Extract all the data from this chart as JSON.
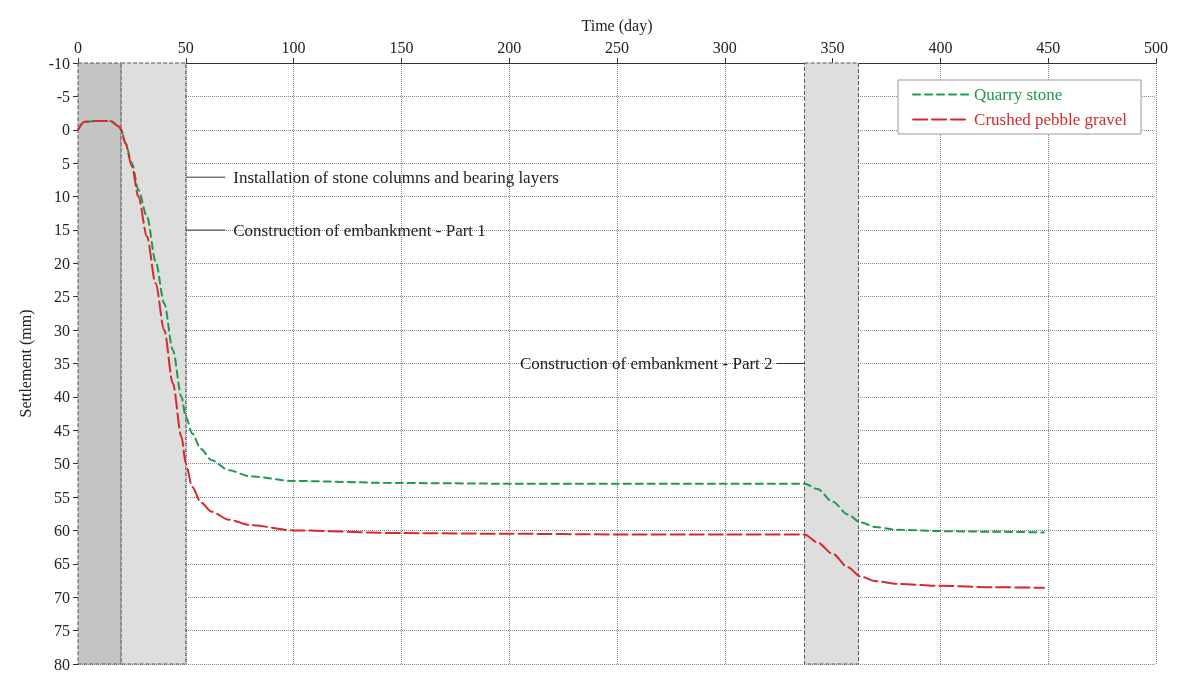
{
  "chart_data": {
    "type": "line",
    "xlabel": "Time (day)",
    "ylabel": "Settlement (mm)",
    "xlim": [
      0,
      500
    ],
    "xticks": [
      0,
      50,
      100,
      150,
      200,
      250,
      300,
      350,
      400,
      450,
      500
    ],
    "ylim": [
      80,
      -10
    ],
    "yticks": [
      -10,
      -5,
      0,
      5,
      10,
      15,
      20,
      25,
      30,
      35,
      40,
      45,
      50,
      55,
      60,
      65,
      70,
      75,
      80
    ],
    "grid": true,
    "legend": "top right",
    "marker": "none",
    "line_style": "dashed",
    "series": [
      {
        "name": "Quarry stone",
        "color": "#1e9a4f",
        "x": [
          0,
          3,
          8,
          15,
          19,
          20,
          22,
          25,
          28,
          32,
          36,
          40,
          44,
          48,
          50,
          53,
          57,
          62,
          70,
          80,
          100,
          150,
          200,
          250,
          300,
          337,
          343,
          350,
          357,
          363,
          370,
          380,
          400,
          425,
          448
        ],
        "values": [
          0,
          -1.2,
          -1.3,
          -1.3,
          -0.5,
          0,
          2,
          5,
          9,
          13,
          19.7,
          26,
          33,
          40,
          43,
          45.5,
          47.8,
          49.5,
          51,
          51.9,
          52.6,
          52.9,
          53,
          53,
          53,
          53,
          53.8,
          55.7,
          57.6,
          58.8,
          59.5,
          59.9,
          60.1,
          60.2,
          60.3
        ]
      },
      {
        "name": "Crushed pebble gravel",
        "color": "#d42a2a",
        "x": [
          0,
          3,
          8,
          15,
          19,
          20,
          22,
          25,
          28,
          32,
          36,
          40,
          44,
          48,
          50,
          53,
          57,
          62,
          70,
          80,
          100,
          150,
          200,
          250,
          300,
          337,
          343,
          350,
          357,
          363,
          370,
          380,
          400,
          425,
          448
        ],
        "values": [
          0,
          -1.2,
          -1.3,
          -1.3,
          -0.5,
          0,
          2,
          5.5,
          10,
          16,
          23,
          30,
          38,
          46,
          50,
          53.5,
          55.8,
          57.2,
          58.4,
          59.2,
          60,
          60.4,
          60.5,
          60.6,
          60.6,
          60.6,
          61.8,
          63.5,
          65.5,
          66.9,
          67.6,
          68,
          68.3,
          68.5,
          68.6
        ]
      }
    ],
    "bands": [
      {
        "axis": "x",
        "from": 0,
        "to": 20,
        "color": "#c4c4c4",
        "label": "Installation of stone columns and bearing layers"
      },
      {
        "axis": "x",
        "from": 20,
        "to": 50,
        "color": "#dedede",
        "label": "Construction of embankment - Part 1"
      },
      {
        "axis": "x",
        "from": 337,
        "to": 362,
        "color": "#dedede",
        "label": "Construction of embankment - Part 2"
      }
    ]
  }
}
